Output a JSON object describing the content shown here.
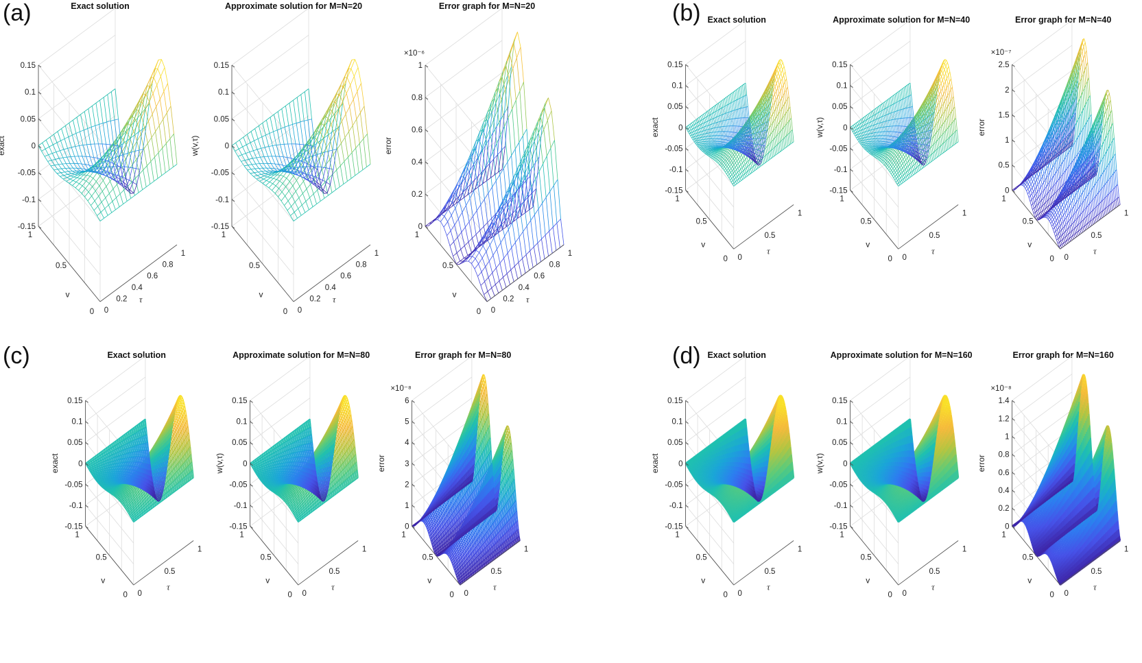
{
  "figure": {
    "panels": [
      {
        "id": "a",
        "label": "(a)",
        "mesh": 20
      },
      {
        "id": "b",
        "label": "(b)",
        "mesh": 40
      },
      {
        "id": "c",
        "label": "(c)",
        "mesh": 80
      },
      {
        "id": "d",
        "label": "(d)",
        "mesh": 160
      }
    ]
  },
  "chart_data": [
    {
      "panel": "a",
      "type": "surface",
      "kind": "exact",
      "title": "Exact solution",
      "zlabel": "exact",
      "xlabel": "v",
      "ylabel": "τ",
      "zlim": [
        -0.15,
        0.15
      ],
      "zticks": [
        "0.15",
        "0.1",
        "0.05",
        "0",
        "-0.05",
        "-0.1",
        "-0.15"
      ],
      "vticks": [
        "0",
        "0.5",
        "1"
      ],
      "tauticks": [
        "0",
        "0.2",
        "0.4",
        "0.6",
        "0.8",
        "1"
      ],
      "exponent": "",
      "grid": 20
    },
    {
      "panel": "a",
      "type": "surface",
      "kind": "approx",
      "title": "Approximate solution for M=N=20",
      "zlabel": "w(v,τ)",
      "xlabel": "v",
      "ylabel": "τ",
      "zlim": [
        -0.15,
        0.15
      ],
      "zticks": [
        "0.15",
        "0.1",
        "0.05",
        "0",
        "-0.05",
        "-0.1",
        "-0.15"
      ],
      "vticks": [
        "0",
        "0.5",
        "1"
      ],
      "tauticks": [
        "0",
        "0.2",
        "0.4",
        "0.6",
        "0.8",
        "1"
      ],
      "exponent": "",
      "grid": 20
    },
    {
      "panel": "a",
      "type": "surface",
      "kind": "error",
      "title": "Error graph for M=N=20",
      "zlabel": "error",
      "xlabel": "v",
      "ylabel": "τ",
      "zlim": [
        0,
        1
      ],
      "zticks": [
        "1",
        "0.8",
        "0.6",
        "0.4",
        "0.2",
        "0"
      ],
      "vticks": [
        "0",
        "0.5",
        "1"
      ],
      "tauticks": [
        "0",
        "0.2",
        "0.4",
        "0.6",
        "0.8",
        "1"
      ],
      "exponent": "×10⁻⁶",
      "max_error": 1e-06,
      "grid": 20
    },
    {
      "panel": "b",
      "type": "surface",
      "kind": "exact",
      "title": "Exact solution",
      "zlabel": "exact",
      "xlabel": "v",
      "ylabel": "τ",
      "zlim": [
        -0.15,
        0.15
      ],
      "zticks": [
        "0.15",
        "0.1",
        "0.05",
        "0",
        "-0.05",
        "-0.1",
        "-0.15"
      ],
      "vticks": [
        "0",
        "0.5",
        "1"
      ],
      "tauticks": [
        "0",
        "0.5",
        "1"
      ],
      "exponent": "",
      "grid": 40
    },
    {
      "panel": "b",
      "type": "surface",
      "kind": "approx",
      "title": "Approximate solution for M=N=40",
      "zlabel": "w(v,τ)",
      "xlabel": "v",
      "ylabel": "τ",
      "zlim": [
        -0.15,
        0.15
      ],
      "zticks": [
        "0.15",
        "0.1",
        "0.05",
        "0",
        "-0.05",
        "-0.1",
        "-0.15"
      ],
      "vticks": [
        "0",
        "0.5",
        "1"
      ],
      "tauticks": [
        "0",
        "0.5",
        "1"
      ],
      "exponent": "",
      "grid": 40
    },
    {
      "panel": "b",
      "type": "surface",
      "kind": "error",
      "title": "Error graph for M=N=40",
      "zlabel": "error",
      "xlabel": "v",
      "ylabel": "τ",
      "zlim": [
        0,
        2.5
      ],
      "zticks": [
        "2.5",
        "2",
        "1.5",
        "1",
        "0.5",
        "0"
      ],
      "vticks": [
        "0",
        "0.5",
        "1"
      ],
      "tauticks": [
        "0",
        "0.5",
        "1"
      ],
      "exponent": "×10⁻⁷",
      "max_error": 2.5e-07,
      "grid": 40
    },
    {
      "panel": "c",
      "type": "surface",
      "kind": "exact",
      "title": "Exact solution",
      "zlabel": "exact",
      "xlabel": "v",
      "ylabel": "τ",
      "zlim": [
        -0.15,
        0.15
      ],
      "zticks": [
        "0.15",
        "0.1",
        "0.05",
        "0",
        "-0.05",
        "-0.1",
        "-0.15"
      ],
      "vticks": [
        "0",
        "0.5",
        "1"
      ],
      "tauticks": [
        "0",
        "0.5",
        "1"
      ],
      "exponent": "",
      "grid": 80
    },
    {
      "panel": "c",
      "type": "surface",
      "kind": "approx",
      "title": "Approximate solution for M=N=80",
      "zlabel": "w(v,τ)",
      "xlabel": "v",
      "ylabel": "τ",
      "zlim": [
        -0.15,
        0.15
      ],
      "zticks": [
        "0.15",
        "0.1",
        "0.05",
        "0",
        "-0.05",
        "-0.1",
        "-0.15"
      ],
      "vticks": [
        "0",
        "0.5",
        "1"
      ],
      "tauticks": [
        "0",
        "0.5",
        "1"
      ],
      "exponent": "",
      "grid": 80
    },
    {
      "panel": "c",
      "type": "surface",
      "kind": "error",
      "title": "Error graph for M=N=80",
      "zlabel": "error",
      "xlabel": "v",
      "ylabel": "τ",
      "zlim": [
        0,
        6
      ],
      "zticks": [
        "6",
        "5",
        "4",
        "3",
        "2",
        "1",
        "0"
      ],
      "vticks": [
        "0",
        "0.5",
        "1"
      ],
      "tauticks": [
        "0",
        "0.5",
        "1"
      ],
      "exponent": "×10⁻⁸",
      "max_error": 6e-08,
      "grid": 80
    },
    {
      "panel": "d",
      "type": "surface",
      "kind": "exact",
      "title": "Exact solution",
      "zlabel": "exact",
      "xlabel": "v",
      "ylabel": "τ",
      "zlim": [
        -0.15,
        0.15
      ],
      "zticks": [
        "0.15",
        "0.1",
        "0.05",
        "0",
        "-0.05",
        "-0.1",
        "-0.15"
      ],
      "vticks": [
        "0",
        "0.5",
        "1"
      ],
      "tauticks": [
        "0",
        "0.5",
        "1"
      ],
      "exponent": "",
      "grid": 160
    },
    {
      "panel": "d",
      "type": "surface",
      "kind": "approx",
      "title": "Approximate solution for M=N=160",
      "zlabel": "w(v,τ)",
      "xlabel": "v",
      "ylabel": "τ",
      "zlim": [
        -0.15,
        0.15
      ],
      "zticks": [
        "0.15",
        "0.1",
        "0.05",
        "0",
        "-0.05",
        "-0.1",
        "-0.15"
      ],
      "vticks": [
        "0",
        "0.5",
        "1"
      ],
      "tauticks": [
        "0",
        "0.5",
        "1"
      ],
      "exponent": "",
      "grid": 160
    },
    {
      "panel": "d",
      "type": "surface",
      "kind": "error",
      "title": "Error graph for M=N=160",
      "zlabel": "error",
      "xlabel": "v",
      "ylabel": "τ",
      "zlim": [
        0,
        1.4
      ],
      "zticks": [
        "1.4",
        "1.2",
        "1",
        "0.8",
        "0.6",
        "0.4",
        "0.2",
        "0"
      ],
      "vticks": [
        "0",
        "0.5",
        "1"
      ],
      "tauticks": [
        "0",
        "0.5",
        "1"
      ],
      "exponent": "×10⁻⁸",
      "max_error": 1.4e-08,
      "grid": 160
    }
  ],
  "colormap": [
    "#3e26a8",
    "#4652e8",
    "#2d7df0",
    "#1ba5d8",
    "#1fc0b0",
    "#5ccb7a",
    "#b4c541",
    "#f5ba3c",
    "#f9e028"
  ]
}
